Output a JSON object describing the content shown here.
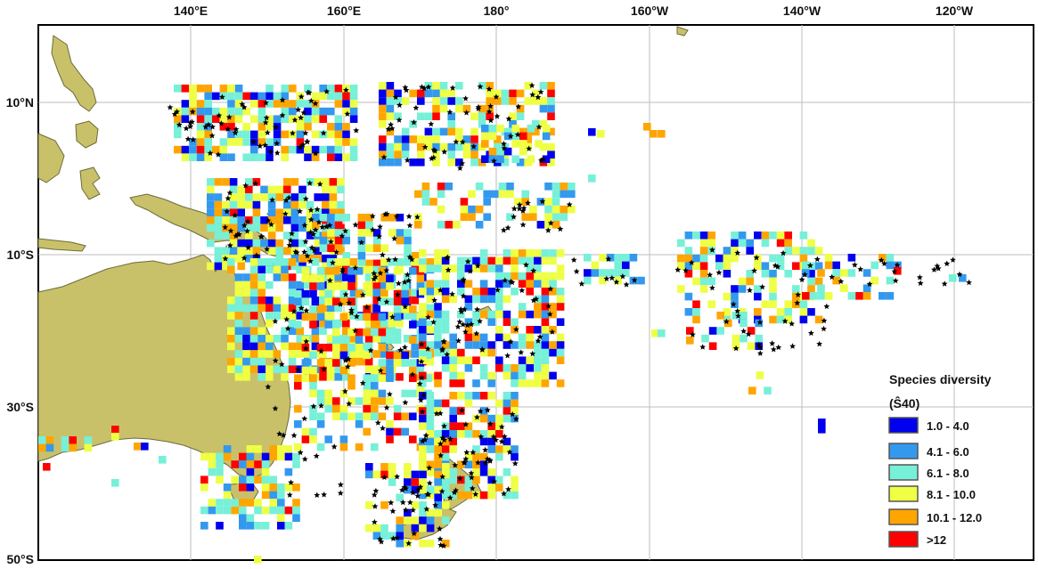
{
  "map": {
    "region": "Western and South Pacific Ocean",
    "land_color": "#c9c16a",
    "ocean_color": "#ffffff",
    "grid_color": "#bdbdbd",
    "star_color": "#000000",
    "longitude_labels": [
      "140°E",
      "160°E",
      "180°",
      "160°W",
      "140°W",
      "120°W"
    ],
    "latitude_labels": [
      "10°N",
      "10°S",
      "30°S",
      "50°S"
    ]
  },
  "legend": {
    "title": "Species diversity",
    "subtitle": "(Ŝ40)",
    "classes": [
      {
        "label": "1.0 - 4.0",
        "color": "#0000ee"
      },
      {
        "label": "4.1 - 6.0",
        "color": "#3399ee"
      },
      {
        "label": "6.1 - 8.0",
        "color": "#77f0d8"
      },
      {
        "label": "8.1 - 10.0",
        "color": "#eeff44"
      },
      {
        "label": "10.1 - 12.0",
        "color": "#ffa500"
      },
      {
        "label": ">12",
        "color": "#ff0000"
      }
    ]
  }
}
